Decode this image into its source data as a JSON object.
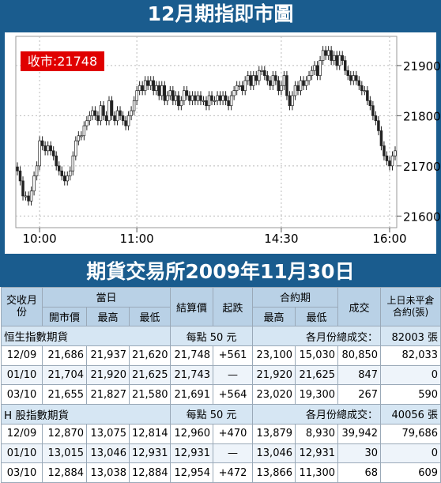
{
  "header": {
    "title": "12月期指即市圖"
  },
  "chart_data": {
    "type": "candlestick",
    "close_label": "收市:21748",
    "ylim": [
      21580,
      21955
    ],
    "y_ticks": [
      "21600",
      "21700",
      "21800",
      "21900"
    ],
    "y_tick_values": [
      21600,
      21700,
      21800,
      21900
    ],
    "x_ticks": [
      "10:00",
      "11:00",
      "14:30",
      "16:00"
    ],
    "x_tick_index": [
      8,
      43,
      95,
      134
    ],
    "close_series": [
      21690,
      21670,
      21640,
      21640,
      21630,
      21650,
      21680,
      21700,
      21750,
      21740,
      21730,
      21740,
      21730,
      21720,
      21700,
      21690,
      21680,
      21670,
      21680,
      21690,
      21720,
      21750,
      21760,
      21760,
      21780,
      21790,
      21800,
      21810,
      21800,
      21790,
      21820,
      21800,
      21790,
      21830,
      21800,
      21790,
      21810,
      21800,
      21790,
      21780,
      21800,
      21810,
      21830,
      21850,
      21860,
      21850,
      21870,
      21860,
      21870,
      21850,
      21860,
      21840,
      21860,
      21830,
      21840,
      21850,
      21830,
      21840,
      21820,
      21830,
      21850,
      21840,
      21830,
      21840,
      21830,
      21840,
      21830,
      21830,
      21820,
      21840,
      21830,
      21830,
      21840,
      21830,
      21840,
      21830,
      21820,
      21840,
      21850,
      21860,
      21860,
      21850,
      21870,
      21880,
      21860,
      21880,
      21870,
      21890,
      21890,
      21880,
      21870,
      21860,
      21880,
      21870,
      21850,
      21860,
      21880,
      21840,
      21820,
      21840,
      21860,
      21850,
      21870,
      21860,
      21870,
      21880,
      21890,
      21900,
      21880,
      21910,
      21930,
      21920,
      21930,
      21910,
      21920,
      21900,
      21920,
      21910,
      21890,
      21880,
      21870,
      21880,
      21870,
      21860,
      21850,
      21850,
      21830,
      21820,
      21800,
      21790,
      21770,
      21740,
      21720,
      21710,
      21700,
      21720,
      21730
    ]
  },
  "band2": {
    "title": "期貨交易所2009年11月30日"
  },
  "table": {
    "headers": {
      "month": "交收月份",
      "day": "當日",
      "open": "開市價",
      "high": "最高",
      "low": "最低",
      "settle": "結算價",
      "change": "起跌",
      "contract": "合約期",
      "c_high": "最高",
      "c_low": "最低",
      "volume": "成交",
      "oi": "上日未平倉合約(張)"
    },
    "sections": [
      {
        "name": "恒生指數期貨",
        "unit": "每點 50 元",
        "total_label": "各月份總成交：",
        "total": "82003 張",
        "rows": [
          [
            "12/09",
            "21,686",
            "21,937",
            "21,620",
            "21,748",
            "+561",
            "23,100",
            "15,030",
            "80,850",
            "82,033"
          ],
          [
            "01/10",
            "21,704",
            "21,920",
            "21,625",
            "21,743",
            "—",
            "21,920",
            "21,625",
            "847",
            "0"
          ],
          [
            "03/10",
            "21,655",
            "21,827",
            "21,580",
            "21,691",
            "+564",
            "23,020",
            "19,300",
            "267",
            "590"
          ]
        ]
      },
      {
        "name": "H 股指數期貨",
        "unit": "每點 50 元",
        "total_label": "各月份總成交：",
        "total": "40056 張",
        "rows": [
          [
            "12/09",
            "12,870",
            "13,075",
            "12,814",
            "12,960",
            "+470",
            "13,879",
            "8,930",
            "39,942",
            "79,686"
          ],
          [
            "01/10",
            "13,015",
            "13,046",
            "12,931",
            "12,931",
            "—",
            "13,046",
            "12,931",
            "30",
            "0"
          ],
          [
            "03/10",
            "12,884",
            "13,038",
            "12,884",
            "12,954",
            "+472",
            "13,866",
            "11,300",
            "68",
            "609"
          ]
        ]
      }
    ]
  }
}
